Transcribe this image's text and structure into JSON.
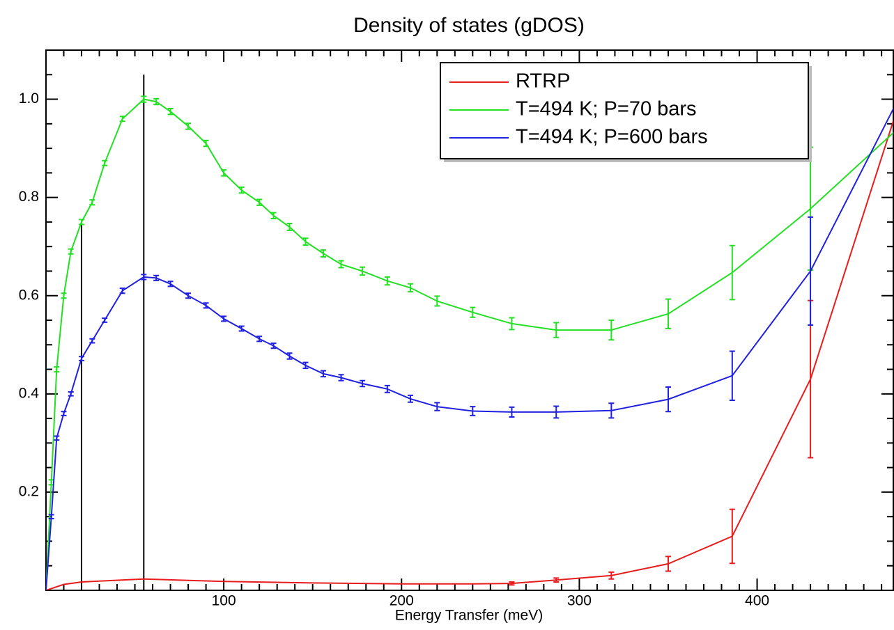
{
  "chart_data": {
    "type": "line",
    "title": "Density of states (gDOS)",
    "xlabel": "Energy Transfer (meV)",
    "xlim": [
      0,
      477
    ],
    "ylim": [
      0,
      1.1
    ],
    "xticks": [
      100,
      200,
      300,
      400
    ],
    "yticks": [
      0.2,
      0.4,
      0.6,
      0.8,
      {
        "value": 1,
        "label": "1.0"
      }
    ],
    "xminorticks": [
      10,
      20,
      30,
      40,
      50,
      60,
      70,
      80,
      90,
      110,
      120,
      130,
      140,
      150,
      160,
      170,
      180,
      190,
      210,
      220,
      230,
      240,
      250,
      260,
      270,
      280,
      290,
      310,
      320,
      330,
      340,
      350,
      360,
      370,
      380,
      390,
      410,
      420,
      430,
      440,
      450,
      460,
      470
    ],
    "yminorticks": [
      0.05,
      0.1,
      0.15,
      0.25,
      0.3,
      0.35,
      0.45,
      0.5,
      0.55,
      0.65,
      0.7,
      0.75,
      0.85,
      0.9,
      0.95,
      1.05
    ],
    "legend": "upper right",
    "vlines": [
      {
        "x": 20,
        "y": 0.75
      },
      {
        "x": 55,
        "y": 1.05
      }
    ],
    "series": [
      {
        "name": "RTRP",
        "color": "#e81c1c",
        "x": [
          0,
          10,
          20,
          55,
          100,
          150,
          200,
          240,
          262,
          287,
          318,
          350,
          386,
          430,
          477
        ],
        "values": [
          0,
          0.012,
          0.017,
          0.023,
          0.018,
          0.015,
          0.013,
          0.013,
          0.014,
          0.021,
          0.03,
          0.054,
          0.11,
          0.43,
          0.96
        ],
        "errors": [
          null,
          null,
          null,
          null,
          null,
          null,
          null,
          null,
          0.003,
          0.004,
          0.007,
          0.015,
          0.055,
          0.16,
          null
        ]
      },
      {
        "name": "T=494 K; P=70 bars",
        "color": "#22e022",
        "x": [
          0,
          3,
          6,
          10,
          14,
          20,
          26,
          33,
          43,
          55,
          62,
          70,
          80,
          90,
          100,
          110,
          120,
          128,
          137,
          146,
          156,
          166,
          178,
          192,
          205,
          220,
          240,
          262,
          287,
          318,
          350,
          386,
          430,
          477
        ],
        "values": [
          0,
          0.22,
          0.45,
          0.6,
          0.69,
          0.75,
          0.79,
          0.87,
          0.96,
          1.0,
          0.995,
          0.975,
          0.945,
          0.91,
          0.85,
          0.815,
          0.79,
          0.763,
          0.74,
          0.71,
          0.686,
          0.664,
          0.65,
          0.63,
          0.616,
          0.589,
          0.566,
          0.543,
          0.53,
          0.53,
          0.563,
          0.647,
          0.777,
          0.933
        ],
        "errors": [
          null,
          0.005,
          0.005,
          0.005,
          0.005,
          0.005,
          0.005,
          0.005,
          0.005,
          0.006,
          0.006,
          0.006,
          0.006,
          0.006,
          0.006,
          0.006,
          0.006,
          0.006,
          0.007,
          0.007,
          0.007,
          0.007,
          0.008,
          0.008,
          0.008,
          0.01,
          0.01,
          0.012,
          0.015,
          0.02,
          0.03,
          0.055,
          0.125,
          null
        ]
      },
      {
        "name": "T=494 K; P=600 bars",
        "color": "#2020e0",
        "x": [
          0,
          3,
          6,
          10,
          14,
          20,
          26,
          33,
          43,
          55,
          62,
          70,
          80,
          90,
          100,
          110,
          120,
          128,
          137,
          146,
          156,
          166,
          178,
          192,
          205,
          220,
          240,
          262,
          287,
          318,
          350,
          386,
          430,
          477
        ],
        "values": [
          0,
          0.15,
          0.31,
          0.36,
          0.4,
          0.472,
          0.508,
          0.55,
          0.61,
          0.638,
          0.636,
          0.624,
          0.6,
          0.58,
          0.553,
          0.533,
          0.512,
          0.498,
          0.477,
          0.458,
          0.441,
          0.433,
          0.421,
          0.41,
          0.39,
          0.374,
          0.365,
          0.363,
          0.363,
          0.366,
          0.389,
          0.437,
          0.65,
          0.983
        ],
        "errors": [
          null,
          0.004,
          0.004,
          0.004,
          0.004,
          0.004,
          0.004,
          0.004,
          0.005,
          0.005,
          0.005,
          0.005,
          0.005,
          0.005,
          0.005,
          0.005,
          0.005,
          0.005,
          0.006,
          0.006,
          0.006,
          0.006,
          0.006,
          0.007,
          0.007,
          0.008,
          0.009,
          0.01,
          0.012,
          0.015,
          0.025,
          0.05,
          0.11,
          null
        ]
      }
    ]
  }
}
